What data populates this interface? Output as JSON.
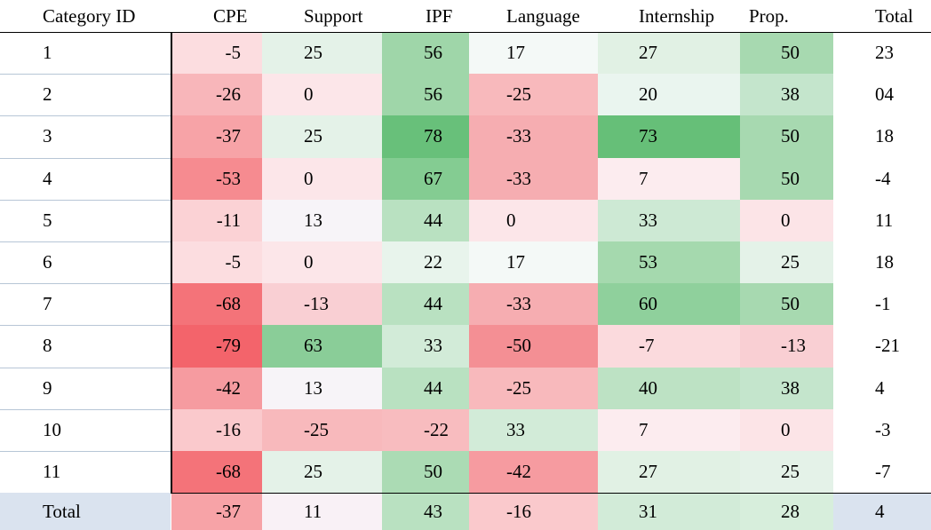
{
  "table": {
    "headers": [
      "Category ID",
      "CPE",
      "Support",
      "IPF",
      "Language",
      "Internship",
      "Prop.",
      "Total"
    ],
    "rows": [
      {
        "id": "1",
        "cpe": {
          "text": "-5",
          "color": "#fcdde0"
        },
        "support": {
          "text": "25",
          "color": "#e4f2e8"
        },
        "ipf": {
          "text": "56",
          "color": "#9fd6a9"
        },
        "language": {
          "text": "17",
          "color": "#f4f9f7"
        },
        "internship": {
          "text": "27",
          "color": "#e1f1e4"
        },
        "prop": {
          "text": "50",
          "color": "#a7d9b0"
        },
        "total": "23"
      },
      {
        "id": "2",
        "cpe": {
          "text": "-26",
          "color": "#f8b6ba"
        },
        "support": {
          "text": "0",
          "color": "#fce6e9"
        },
        "ipf": {
          "text": "56",
          "color": "#9fd6a9"
        },
        "language": {
          "text": "-25",
          "color": "#f8b9bc"
        },
        "internship": {
          "text": "20",
          "color": "#eaf5ef"
        },
        "prop": {
          "text": "38",
          "color": "#c4e5cc"
        },
        "total": "04"
      },
      {
        "id": "3",
        "cpe": {
          "text": "-37",
          "color": "#f7a3a7"
        },
        "support": {
          "text": "25",
          "color": "#e4f2e8"
        },
        "ipf": {
          "text": "78",
          "color": "#68c07a"
        },
        "language": {
          "text": "-33",
          "color": "#f6adb1"
        },
        "internship": {
          "text": "73",
          "color": "#66bf78"
        },
        "prop": {
          "text": "50",
          "color": "#a7d9b0"
        },
        "total": "18"
      },
      {
        "id": "4",
        "cpe": {
          "text": "-53",
          "color": "#f68b90"
        },
        "support": {
          "text": "0",
          "color": "#fce6e9"
        },
        "ipf": {
          "text": "67",
          "color": "#84cc92"
        },
        "language": {
          "text": "-33",
          "color": "#f6adb1"
        },
        "internship": {
          "text": "7",
          "color": "#fcecef"
        },
        "prop": {
          "text": "50",
          "color": "#a7d9b0"
        },
        "total": "-4"
      },
      {
        "id": "5",
        "cpe": {
          "text": "-11",
          "color": "#fbd2d5"
        },
        "support": {
          "text": "13",
          "color": "#f7f4f8"
        },
        "ipf": {
          "text": "44",
          "color": "#b9e1c1"
        },
        "language": {
          "text": "0",
          "color": "#fce6e9"
        },
        "internship": {
          "text": "33",
          "color": "#cde9d4"
        },
        "prop": {
          "text": "0",
          "color": "#fce4e7"
        },
        "total": "11"
      },
      {
        "id": "6",
        "cpe": {
          "text": "-5",
          "color": "#fcdde0"
        },
        "support": {
          "text": "0",
          "color": "#fce6e9"
        },
        "ipf": {
          "text": "22",
          "color": "#e8f4ec"
        },
        "language": {
          "text": "17",
          "color": "#f4f9f7"
        },
        "internship": {
          "text": "53",
          "color": "#a5d9ae"
        },
        "prop": {
          "text": "25",
          "color": "#e4f2e8"
        },
        "total": "18"
      },
      {
        "id": "7",
        "cpe": {
          "text": "-68",
          "color": "#f47379"
        },
        "support": {
          "text": "-13",
          "color": "#f9cfd3"
        },
        "ipf": {
          "text": "44",
          "color": "#b9e1c1"
        },
        "language": {
          "text": "-33",
          "color": "#f6adb1"
        },
        "internship": {
          "text": "60",
          "color": "#8fd09c"
        },
        "prop": {
          "text": "50",
          "color": "#a7d9b0"
        },
        "total": "-1"
      },
      {
        "id": "8",
        "cpe": {
          "text": "-79",
          "color": "#f3646b"
        },
        "support": {
          "text": "63",
          "color": "#8acd98"
        },
        "ipf": {
          "text": "33",
          "color": "#d2ebd8"
        },
        "language": {
          "text": "-50",
          "color": "#f48f94"
        },
        "internship": {
          "text": "-7",
          "color": "#fbdadd"
        },
        "prop": {
          "text": "-13",
          "color": "#f9cfd3"
        },
        "total": "-21"
      },
      {
        "id": "9",
        "cpe": {
          "text": "-42",
          "color": "#f69ba0"
        },
        "support": {
          "text": "13",
          "color": "#f7f4f8"
        },
        "ipf": {
          "text": "44",
          "color": "#b9e1c1"
        },
        "language": {
          "text": "-25",
          "color": "#f8b9bc"
        },
        "internship": {
          "text": "40",
          "color": "#bde2c4"
        },
        "prop": {
          "text": "38",
          "color": "#c4e5cc"
        },
        "total": "4"
      },
      {
        "id": "10",
        "cpe": {
          "text": "-16",
          "color": "#fac9cc"
        },
        "support": {
          "text": "-25",
          "color": "#f8b9bc"
        },
        "ipf": {
          "text": "-22",
          "color": "#f8bcbf"
        },
        "language": {
          "text": "33",
          "color": "#d2ebd8"
        },
        "internship": {
          "text": "7",
          "color": "#fcecef"
        },
        "prop": {
          "text": "0",
          "color": "#fce4e7"
        },
        "total": "-3"
      },
      {
        "id": "11",
        "cpe": {
          "text": "-68",
          "color": "#f47379"
        },
        "support": {
          "text": "25",
          "color": "#e4f2e8"
        },
        "ipf": {
          "text": "50",
          "color": "#abdbb4"
        },
        "language": {
          "text": "-42",
          "color": "#f69ba0"
        },
        "internship": {
          "text": "27",
          "color": "#e1f1e4"
        },
        "prop": {
          "text": "25",
          "color": "#e4f2e8"
        },
        "total": "-7"
      }
    ],
    "total_row": {
      "label": "Total",
      "label_bg": "#dae3ef",
      "cpe": {
        "text": "-37",
        "color": "#f7a3a7"
      },
      "support": {
        "text": "11",
        "color": "#f9f1f6"
      },
      "ipf": {
        "text": "43",
        "color": "#b9e1c1"
      },
      "language": {
        "text": "-16",
        "color": "#fac9cc"
      },
      "internship": {
        "text": "31",
        "color": "#d2ebd8"
      },
      "prop": {
        "text": "28",
        "color": "#d7eedc"
      },
      "total": {
        "text": "4",
        "color": "#dae3ef"
      }
    }
  }
}
